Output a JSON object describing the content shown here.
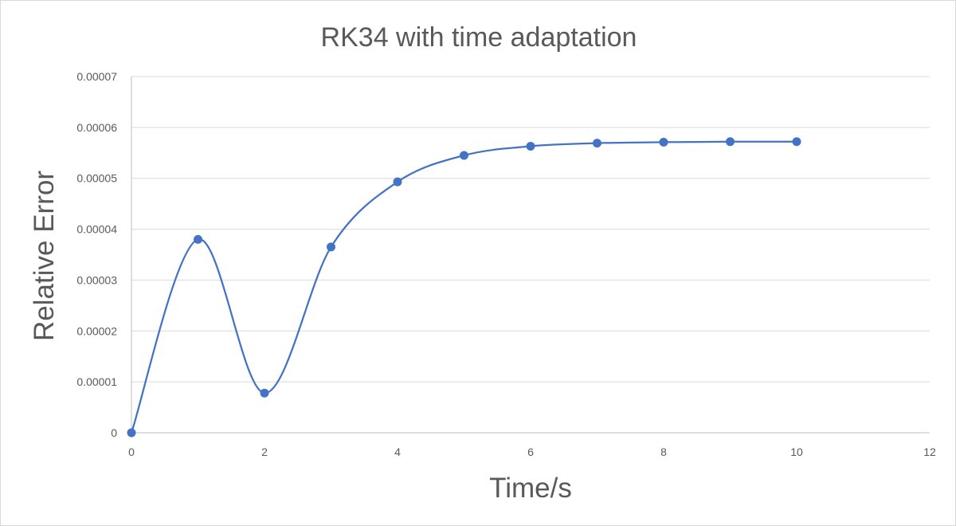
{
  "chart_data": {
    "type": "scatter",
    "title": "RK34 with time adaptation",
    "xlabel": "Time/s",
    "ylabel": "Relative Error",
    "xlim": [
      0,
      12
    ],
    "ylim": [
      0,
      7e-05
    ],
    "x_ticks": [
      "0",
      "2",
      "4",
      "6",
      "8",
      "10",
      "12"
    ],
    "y_ticks": [
      "0",
      "0.00001",
      "0.00002",
      "0.00003",
      "0.00004",
      "0.00005",
      "0.00006",
      "0.00007"
    ],
    "grid": "horizontal",
    "legend": "none",
    "markers": true,
    "smooth_line": true,
    "series": [
      {
        "color": "#4472c4",
        "x": [
          0,
          1,
          2,
          3,
          4,
          5,
          6,
          7,
          8,
          9,
          10
        ],
        "y": [
          0.0,
          3.8e-05,
          7.8e-06,
          3.65e-05,
          4.93e-05,
          5.45e-05,
          5.63e-05,
          5.69e-05,
          5.71e-05,
          5.72e-05,
          5.72e-05
        ]
      }
    ]
  }
}
